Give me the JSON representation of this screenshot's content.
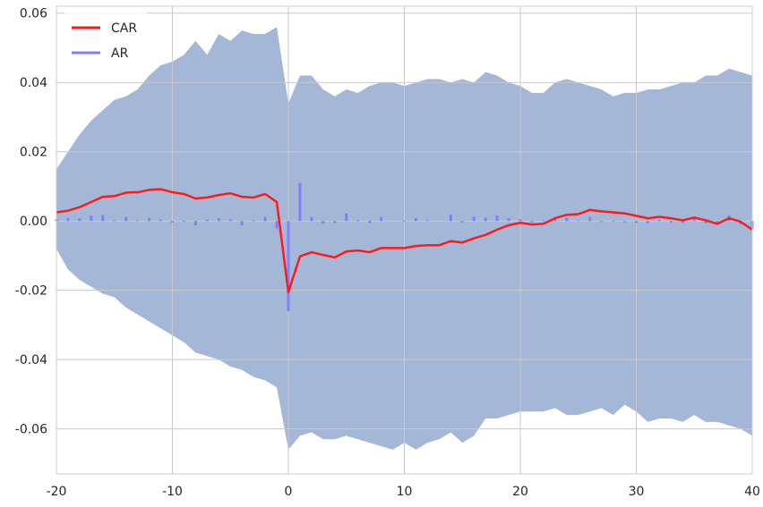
{
  "chart_data": {
    "type": "line",
    "title": "",
    "xlabel": "",
    "ylabel": "",
    "xlim": [
      -20,
      40
    ],
    "ylim": [
      -0.073,
      0.062
    ],
    "grid": true,
    "legend_placement": "top-left",
    "x_ticks": [
      -20,
      -10,
      0,
      10,
      20,
      30,
      40
    ],
    "x_tick_labels": [
      "-20",
      "-10",
      "0",
      "10",
      "20",
      "30",
      "40"
    ],
    "y_ticks": [
      -0.06,
      -0.04,
      -0.02,
      0.0,
      0.02,
      0.04,
      0.06
    ],
    "y_tick_labels": [
      "-0.06",
      "-0.04",
      "-0.02",
      "0.00",
      "0.02",
      "0.04",
      "0.06"
    ],
    "colors": {
      "car": "#ff1a1a",
      "ar": "#8080ff",
      "band": "#a5b7d6",
      "grid": "#c9c9c9",
      "axes_edge": "#cccccc"
    },
    "x": [
      -20,
      -19,
      -18,
      -17,
      -16,
      -15,
      -14,
      -13,
      -12,
      -11,
      -10,
      -9,
      -8,
      -7,
      -6,
      -5,
      -4,
      -3,
      -2,
      -1,
      0,
      1,
      2,
      3,
      4,
      5,
      6,
      7,
      8,
      9,
      10,
      11,
      12,
      13,
      14,
      15,
      16,
      17,
      18,
      19,
      20,
      21,
      22,
      23,
      24,
      25,
      26,
      27,
      28,
      29,
      30,
      31,
      32,
      33,
      34,
      35,
      36,
      37,
      38,
      39,
      40
    ],
    "series": [
      {
        "name": "CAR",
        "kind": "line",
        "values": [
          0.0025,
          0.003,
          0.004,
          0.0055,
          0.007,
          0.0072,
          0.0082,
          0.0083,
          0.009,
          0.0092,
          0.0083,
          0.0078,
          0.0065,
          0.0068,
          0.0075,
          0.008,
          0.007,
          0.0068,
          0.0078,
          0.0055,
          -0.0205,
          -0.0102,
          -0.009,
          -0.0098,
          -0.0105,
          -0.0088,
          -0.0085,
          -0.009,
          -0.0078,
          -0.0078,
          -0.0078,
          -0.0072,
          -0.007,
          -0.007,
          -0.0058,
          -0.0062,
          -0.005,
          -0.004,
          -0.0025,
          -0.0012,
          -0.0005,
          -0.001,
          -0.0008,
          0.0008,
          0.0018,
          0.002,
          0.0032,
          0.0028,
          0.0025,
          0.0022,
          0.0015,
          0.0008,
          0.0012,
          0.0008,
          0.0002,
          0.001,
          0.0002,
          -0.0008,
          0.0008,
          -0.0002,
          -0.0025
        ]
      },
      {
        "name": "AR",
        "kind": "bar",
        "values": [
          0.0005,
          0.0009,
          0.0008,
          0.0016,
          0.0018,
          0.0002,
          0.0012,
          0.0002,
          0.0009,
          0.0004,
          -0.0004,
          -0.0002,
          -0.0012,
          0.0004,
          0.0008,
          0.0005,
          -0.0012,
          0.0002,
          0.0012,
          -0.0022,
          -0.026,
          0.011,
          0.0012,
          -0.0008,
          -0.0006,
          0.0022,
          0.0003,
          -0.0005,
          0.0012,
          0,
          0.0001,
          0.0008,
          0.0002,
          0,
          0.0018,
          -0.0004,
          0.0012,
          0.001,
          0.0016,
          0.0008,
          0.0005,
          -0.0004,
          0.0002,
          0.0012,
          0.001,
          0.0002,
          0.0012,
          -0.0003,
          -0.0002,
          -0.0003,
          -0.0006,
          -0.0006,
          0.0004,
          -0.0004,
          -0.0006,
          0.0008,
          -0.0007,
          -0.001,
          0.0016,
          -0.001,
          -0.0022
        ]
      }
    ],
    "band": {
      "upper": [
        0.015,
        0.02,
        0.025,
        0.029,
        0.032,
        0.035,
        0.036,
        0.038,
        0.042,
        0.045,
        0.046,
        0.048,
        0.052,
        0.048,
        0.054,
        0.052,
        0.055,
        0.054,
        0.054,
        0.056,
        0.034,
        0.042,
        0.042,
        0.038,
        0.036,
        0.038,
        0.037,
        0.039,
        0.04,
        0.04,
        0.039,
        0.04,
        0.041,
        0.041,
        0.04,
        0.041,
        0.04,
        0.043,
        0.042,
        0.04,
        0.039,
        0.037,
        0.037,
        0.04,
        0.041,
        0.04,
        0.039,
        0.038,
        0.036,
        0.037,
        0.037,
        0.038,
        0.038,
        0.039,
        0.04,
        0.04,
        0.042,
        0.042,
        0.044,
        0.043,
        0.042
      ],
      "lower": [
        -0.008,
        -0.014,
        -0.017,
        -0.019,
        -0.021,
        -0.022,
        -0.025,
        -0.027,
        -0.029,
        -0.031,
        -0.033,
        -0.035,
        -0.038,
        -0.039,
        -0.04,
        -0.042,
        -0.043,
        -0.045,
        -0.046,
        -0.048,
        -0.066,
        -0.062,
        -0.061,
        -0.063,
        -0.063,
        -0.062,
        -0.063,
        -0.064,
        -0.065,
        -0.066,
        -0.064,
        -0.066,
        -0.064,
        -0.063,
        -0.061,
        -0.064,
        -0.062,
        -0.057,
        -0.057,
        -0.056,
        -0.055,
        -0.055,
        -0.055,
        -0.054,
        -0.056,
        -0.056,
        -0.055,
        -0.054,
        -0.056,
        -0.053,
        -0.055,
        -0.058,
        -0.057,
        -0.057,
        -0.058,
        -0.056,
        -0.058,
        -0.058,
        -0.059,
        -0.06,
        -0.062
      ]
    }
  }
}
